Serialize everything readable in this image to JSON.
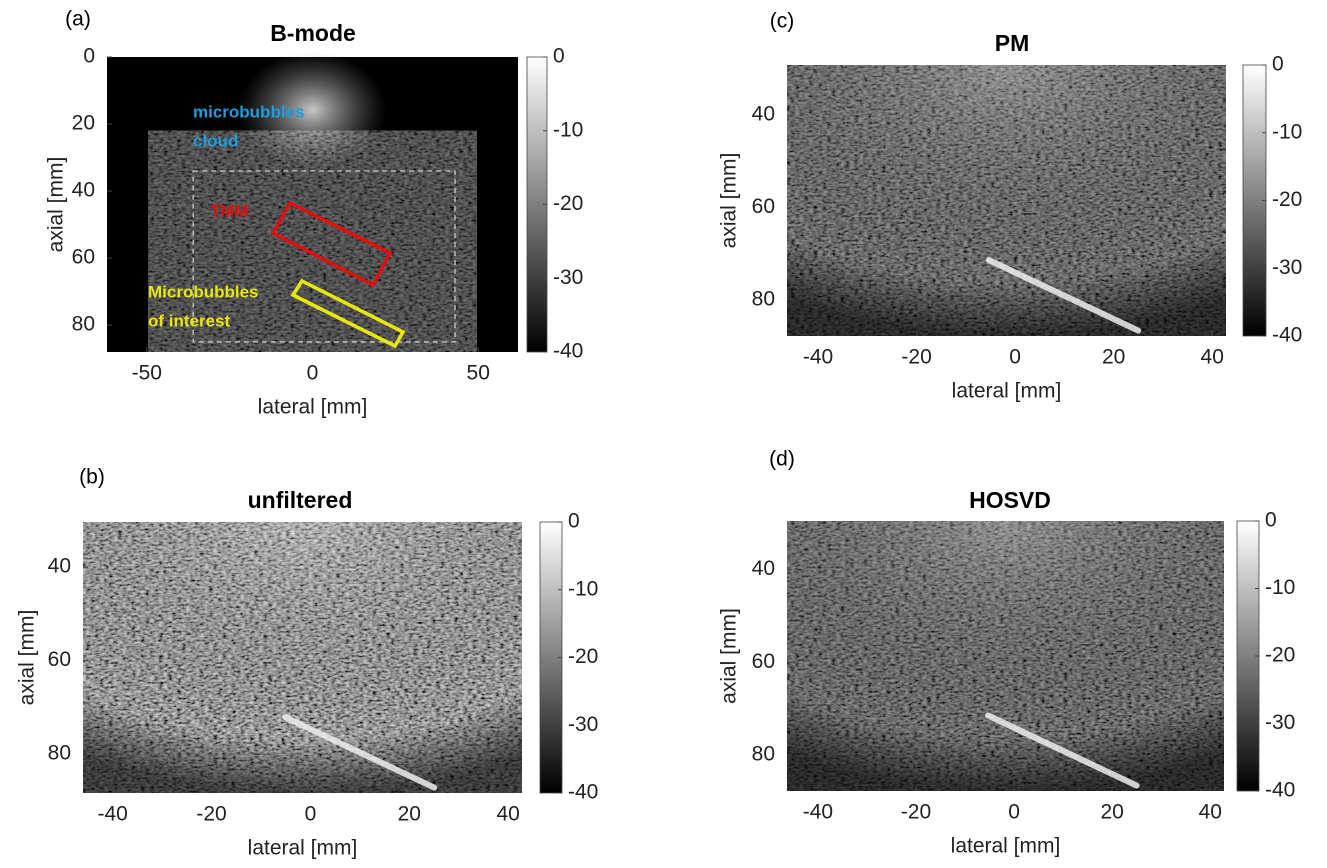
{
  "chart_data": [
    {
      "type": "image",
      "panel_label": "(a)",
      "title": "B-mode",
      "xlabel": "lateral [mm]",
      "ylabel": "axial [mm]",
      "xlim": [
        -62,
        62
      ],
      "ylim": [
        0,
        88
      ],
      "y_reversed": true,
      "xticks": [
        -50,
        0,
        50
      ],
      "yticks": [
        0,
        20,
        40,
        60,
        80
      ],
      "colorbar": {
        "lim": [
          -40,
          0
        ],
        "ticks": [
          0,
          -10,
          -20,
          -30,
          -40
        ]
      },
      "annotations": [
        {
          "lines": [
            "microbubbles",
            "cloud"
          ],
          "color": "#1e9de0"
        },
        {
          "lines": [
            "TMM"
          ],
          "color": "#e01010"
        },
        {
          "lines": [
            "Microbubbles",
            "of interest"
          ],
          "color": "#e8e80a"
        }
      ]
    },
    {
      "type": "image",
      "panel_label": "(b)",
      "title": "unfiltered",
      "xlabel": "lateral [mm]",
      "ylabel": "axial [mm]",
      "xlim": [
        -46,
        42.8
      ],
      "ylim": [
        30.4,
        88.3
      ],
      "y_reversed": true,
      "xticks": [
        -40,
        -20,
        0,
        20,
        40
      ],
      "yticks": [
        40,
        60,
        80
      ],
      "colorbar": {
        "lim": [
          -40,
          0
        ],
        "ticks": [
          0,
          -10,
          -20,
          -30,
          -40
        ]
      }
    },
    {
      "type": "image",
      "panel_label": "(c)",
      "title": "PM",
      "xlabel": "lateral [mm]",
      "ylabel": "axial [mm]",
      "xlim": [
        -46.3,
        42.8
      ],
      "ylim": [
        29.2,
        87.8
      ],
      "y_reversed": true,
      "xticks": [
        -40,
        -20,
        0,
        20,
        40
      ],
      "yticks": [
        40,
        60,
        80
      ],
      "colorbar": {
        "lim": [
          -40,
          0
        ],
        "ticks": [
          0,
          -10,
          -20,
          -30,
          -40
        ]
      }
    },
    {
      "type": "image",
      "panel_label": "(d)",
      "title": "HOSVD",
      "xlabel": "lateral [mm]",
      "ylabel": "axial [mm]",
      "xlim": [
        -46.3,
        42.8
      ],
      "ylim": [
        29.5,
        87.8
      ],
      "y_reversed": true,
      "xticks": [
        -40,
        -20,
        0,
        20,
        40
      ],
      "yticks": [
        40,
        60,
        80
      ],
      "colorbar": {
        "lim": [
          -40,
          0
        ],
        "ticks": [
          0,
          -10,
          -20,
          -30,
          -40
        ]
      }
    }
  ]
}
